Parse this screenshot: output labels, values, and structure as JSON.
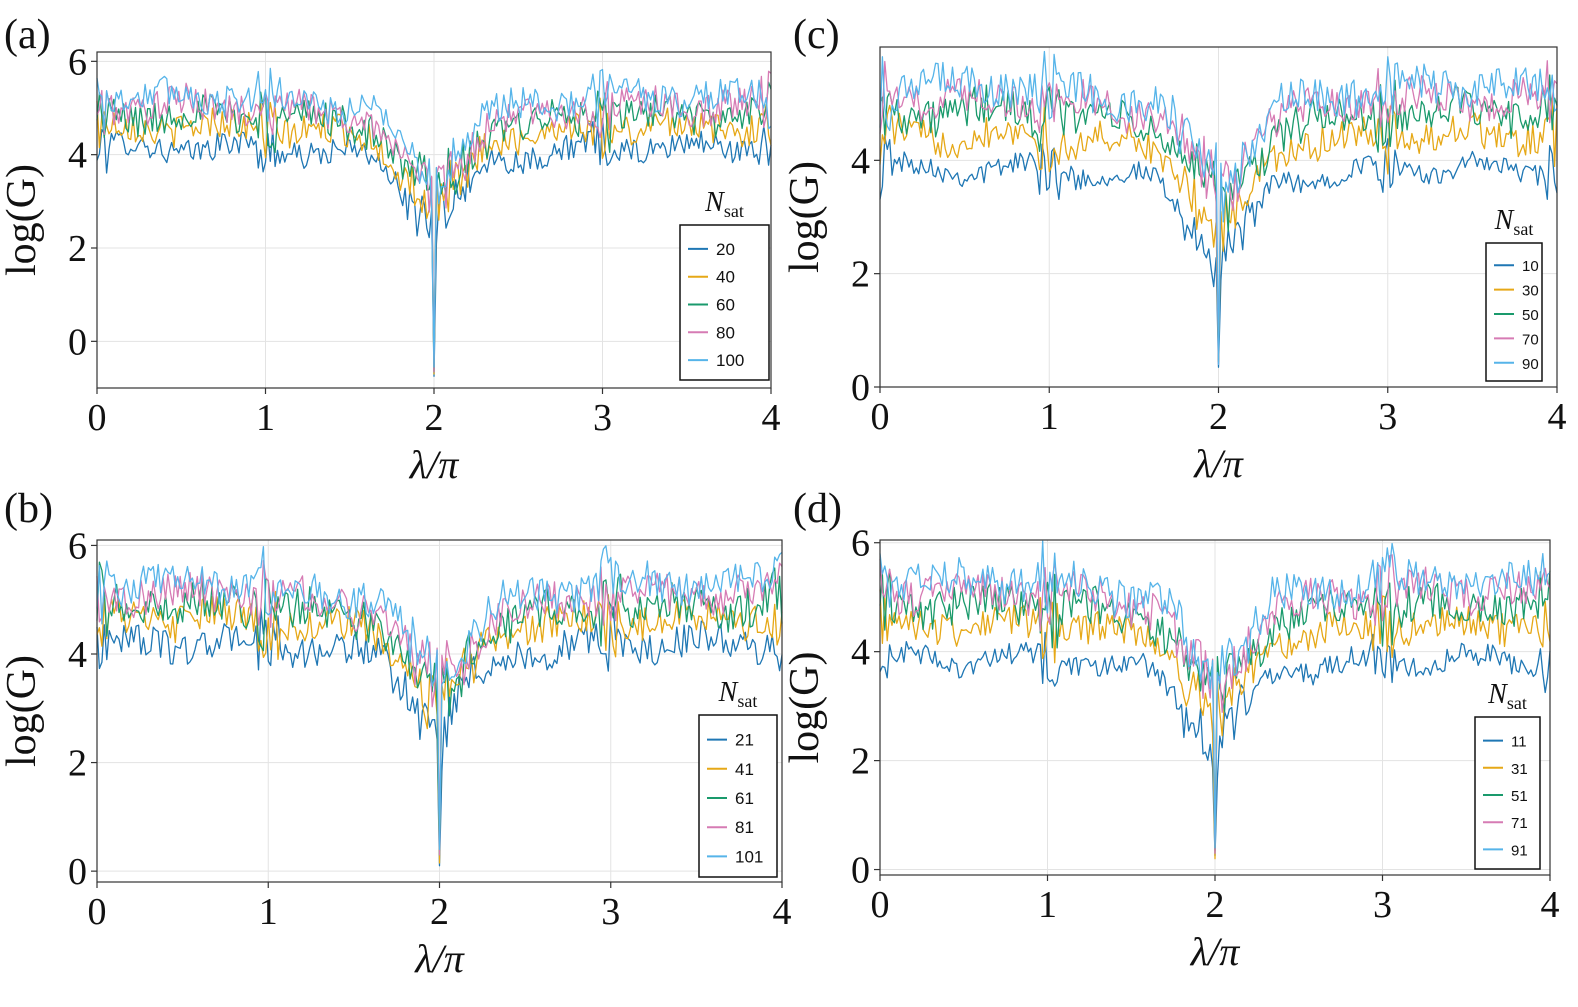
{
  "chart_data": [
    {
      "panel_label": "(a)",
      "type": "line",
      "xlabel": "λ/π",
      "ylabel": "log(G)",
      "xlim": [
        0,
        4
      ],
      "ylim": [
        -1,
        6.2
      ],
      "xticks": [
        0,
        1,
        2,
        3,
        4
      ],
      "yticks": [
        0,
        2,
        4,
        6
      ],
      "grid": true,
      "legend_title": "N",
      "legend_title_sub": "sat",
      "legend_position": "bottom-right",
      "series": [
        {
          "name": "20",
          "color": "#1f77b4",
          "baseline": 4.15,
          "amp": 0.28,
          "dip": 4.9
        },
        {
          "name": "40",
          "color": "#e6a817",
          "baseline": 4.6,
          "amp": 0.34,
          "dip": 5.3
        },
        {
          "name": "60",
          "color": "#1a9a6c",
          "baseline": 4.85,
          "amp": 0.38,
          "dip": 5.5
        },
        {
          "name": "80",
          "color": "#d67bb4",
          "baseline": 5.05,
          "amp": 0.36,
          "dip": 5.7
        },
        {
          "name": "100",
          "color": "#56b4e9",
          "baseline": 5.25,
          "amp": 0.34,
          "dip": 5.8
        }
      ]
    },
    {
      "panel_label": "(c)",
      "type": "line",
      "xlabel": "λ/π",
      "ylabel": "log(G)",
      "xlim": [
        0,
        4
      ],
      "ylim": [
        0,
        6
      ],
      "xticks": [
        0,
        1,
        2,
        3,
        4
      ],
      "yticks": [
        0,
        2,
        4
      ],
      "grid": true,
      "legend_title": "N",
      "legend_title_sub": "sat",
      "legend_position": "bottom-right",
      "series": [
        {
          "name": "10",
          "color": "#1f77b4",
          "baseline": 3.85,
          "amp": 0.2,
          "dip": 3.5
        },
        {
          "name": "30",
          "color": "#e6a817",
          "baseline": 4.45,
          "amp": 0.3,
          "dip": 4.0
        },
        {
          "name": "50",
          "color": "#1a9a6c",
          "baseline": 4.85,
          "amp": 0.36,
          "dip": 4.4
        },
        {
          "name": "70",
          "color": "#d67bb4",
          "baseline": 5.1,
          "amp": 0.34,
          "dip": 4.7
        },
        {
          "name": "90",
          "color": "#56b4e9",
          "baseline": 5.3,
          "amp": 0.34,
          "dip": 4.9
        }
      ]
    },
    {
      "panel_label": "(b)",
      "type": "line",
      "xlabel": "λ/π",
      "ylabel": "log(G)",
      "xlim": [
        0,
        4
      ],
      "ylim": [
        -0.2,
        6.1
      ],
      "xticks": [
        0,
        1,
        2,
        3,
        4
      ],
      "yticks": [
        0,
        2,
        4,
        6
      ],
      "grid": true,
      "legend_title": "N",
      "legend_title_sub": "sat",
      "legend_position": "bottom-right",
      "series": [
        {
          "name": "21",
          "color": "#1f77b4",
          "baseline": 4.2,
          "amp": 0.3,
          "dip": 4.1
        },
        {
          "name": "41",
          "color": "#e6a817",
          "baseline": 4.65,
          "amp": 0.34,
          "dip": 4.5
        },
        {
          "name": "61",
          "color": "#1a9a6c",
          "baseline": 4.9,
          "amp": 0.38,
          "dip": 4.6
        },
        {
          "name": "81",
          "color": "#d67bb4",
          "baseline": 5.1,
          "amp": 0.36,
          "dip": 4.8
        },
        {
          "name": "101",
          "color": "#56b4e9",
          "baseline": 5.3,
          "amp": 0.34,
          "dip": 4.9
        }
      ]
    },
    {
      "panel_label": "(d)",
      "type": "line",
      "xlabel": "λ/π",
      "ylabel": "log(G)",
      "xlim": [
        0,
        4
      ],
      "ylim": [
        -0.1,
        6.05
      ],
      "xticks": [
        0,
        1,
        2,
        3,
        4
      ],
      "yticks": [
        0,
        2,
        4,
        6
      ],
      "grid": true,
      "legend_title": "N",
      "legend_title_sub": "sat",
      "legend_position": "bottom-right",
      "series": [
        {
          "name": "11",
          "color": "#1f77b4",
          "baseline": 3.85,
          "amp": 0.22,
          "dip": 3.6
        },
        {
          "name": "31",
          "color": "#e6a817",
          "baseline": 4.5,
          "amp": 0.3,
          "dip": 4.3
        },
        {
          "name": "51",
          "color": "#1a9a6c",
          "baseline": 4.85,
          "amp": 0.36,
          "dip": 4.5
        },
        {
          "name": "71",
          "color": "#d67bb4",
          "baseline": 5.1,
          "amp": 0.34,
          "dip": 4.8
        },
        {
          "name": "91",
          "color": "#56b4e9",
          "baseline": 5.3,
          "amp": 0.34,
          "dip": 4.9
        }
      ]
    }
  ]
}
